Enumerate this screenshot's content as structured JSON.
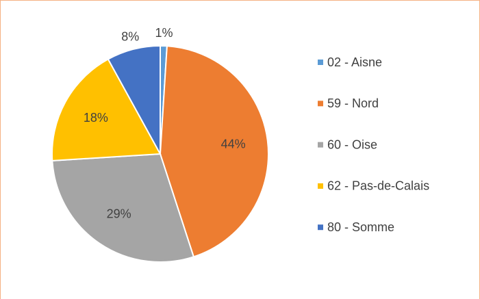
{
  "chart_data": {
    "type": "pie",
    "categories": [
      "02 - Aisne",
      "59 - Nord",
      "60 - Oise",
      "62 - Pas-de-Calais",
      "80 - Somme"
    ],
    "values": [
      1,
      44,
      29,
      18,
      8
    ],
    "value_labels": [
      "1%",
      "44%",
      "29%",
      "18%",
      "8%"
    ],
    "colors": [
      "#5b9bd5",
      "#ed7d31",
      "#a5a5a5",
      "#ffc000",
      "#4472c4"
    ],
    "legend": "right"
  }
}
